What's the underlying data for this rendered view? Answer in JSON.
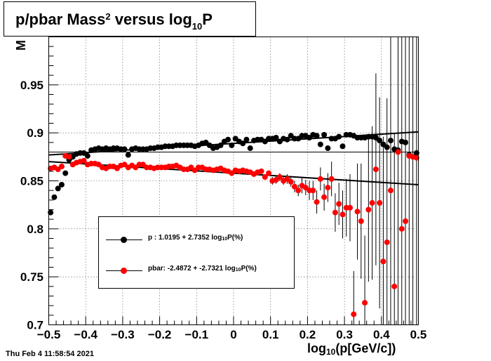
{
  "title": {
    "main": "p/pbar Mass",
    "sup": "2",
    "mid": " versus log",
    "sub": "10",
    "tail": "P"
  },
  "timestamp": "Thu Feb  4 11:58:54 2021",
  "xaxis_title": {
    "pre": "log",
    "sub": "10",
    "post": "(p[GeV/c])"
  },
  "legend": [
    {
      "name": "legend-entry-p",
      "pre": "p   : 1.0195 + 2.7352 log",
      "sub": "10",
      "post": "P(%)",
      "color": "#000000"
    },
    {
      "name": "legend-entry-pbar",
      "pre": "pbar: -2.4872 + -2.7321 log",
      "sub": "10",
      "post": "P(%)",
      "color": "#ff0000"
    }
  ],
  "colors": {
    "p": "#000000",
    "pbar": "#ff0000",
    "fit": "#000000"
  },
  "chart_data": {
    "type": "scatter",
    "title": "p/pbar Mass^2 versus log10P",
    "xlabel": "log10(p[GeV/c])",
    "ylabel": "M",
    "xlim": [
      -0.5,
      0.5
    ],
    "ylim": [
      0.7,
      1.0
    ],
    "xticks": [
      -0.5,
      -0.4,
      -0.3,
      -0.2,
      -0.1,
      0,
      0.1,
      0.2,
      0.3,
      0.4,
      0.5
    ],
    "xtick_labels": [
      "−0.5",
      "−0.4",
      "−0.3",
      "−0.2",
      "−0.1",
      "0",
      "0.1",
      "0.2",
      "0.3",
      "0.4",
      "0.5"
    ],
    "yticks": [
      0.7,
      0.75,
      0.8,
      0.85,
      0.9,
      0.95
    ],
    "ytick_labels": [
      "0.7",
      "0.75",
      "0.8",
      "0.85",
      "0.9",
      "0.95"
    ],
    "grid": true,
    "legend_position": "lower-left",
    "reference_line_y": 0.88,
    "series": [
      {
        "name": "p",
        "color": "#000000",
        "x": [
          -0.495,
          -0.485,
          -0.475,
          -0.465,
          -0.455,
          -0.445,
          -0.435,
          -0.425,
          -0.415,
          -0.405,
          -0.395,
          -0.385,
          -0.375,
          -0.365,
          -0.355,
          -0.345,
          -0.335,
          -0.325,
          -0.315,
          -0.305,
          -0.295,
          -0.285,
          -0.275,
          -0.265,
          -0.255,
          -0.245,
          -0.235,
          -0.225,
          -0.215,
          -0.205,
          -0.195,
          -0.185,
          -0.175,
          -0.165,
          -0.155,
          -0.145,
          -0.135,
          -0.125,
          -0.115,
          -0.105,
          -0.095,
          -0.085,
          -0.075,
          -0.065,
          -0.055,
          -0.045,
          -0.035,
          -0.025,
          -0.015,
          -0.005,
          0.005,
          0.015,
          0.025,
          0.035,
          0.045,
          0.055,
          0.065,
          0.075,
          0.085,
          0.095,
          0.105,
          0.115,
          0.125,
          0.135,
          0.145,
          0.155,
          0.165,
          0.175,
          0.185,
          0.195,
          0.205,
          0.215,
          0.225,
          0.235,
          0.245,
          0.255,
          0.265,
          0.275,
          0.285,
          0.295,
          0.305,
          0.315,
          0.325,
          0.335,
          0.345,
          0.355,
          0.365,
          0.375,
          0.385,
          0.395,
          0.405,
          0.415,
          0.425,
          0.435,
          0.445,
          0.455,
          0.465,
          0.475,
          0.485,
          0.495
        ],
        "y": [
          0.817,
          0.833,
          0.842,
          0.846,
          0.858,
          0.872,
          0.875,
          0.878,
          0.879,
          0.879,
          0.876,
          0.882,
          0.883,
          0.884,
          0.883,
          0.884,
          0.883,
          0.884,
          0.884,
          0.883,
          0.883,
          0.877,
          0.883,
          0.884,
          0.883,
          0.883,
          0.883,
          0.884,
          0.884,
          0.885,
          0.885,
          0.886,
          0.886,
          0.886,
          0.887,
          0.887,
          0.887,
          0.887,
          0.887,
          0.886,
          0.887,
          0.889,
          0.89,
          0.887,
          0.884,
          0.885,
          0.887,
          0.891,
          0.893,
          0.887,
          0.894,
          0.891,
          0.889,
          0.893,
          0.884,
          0.892,
          0.893,
          0.893,
          0.891,
          0.894,
          0.894,
          0.895,
          0.891,
          0.894,
          0.893,
          0.897,
          0.894,
          0.894,
          0.897,
          0.897,
          0.895,
          0.898,
          0.897,
          0.888,
          0.898,
          0.884,
          0.894,
          0.894,
          0.896,
          0.886,
          0.898,
          0.898,
          0.897,
          0.895,
          0.895,
          0.895,
          0.896,
          0.896,
          0.895,
          0.892,
          0.888,
          0.885,
          0.892,
          0.883,
          0.882,
          0.891,
          0.89,
          0.877,
          0.875,
          0.879
        ]
      },
      {
        "name": "pbar",
        "color": "#ff0000",
        "x": [
          -0.495,
          -0.485,
          -0.475,
          -0.465,
          -0.455,
          -0.445,
          -0.435,
          -0.425,
          -0.415,
          -0.405,
          -0.395,
          -0.385,
          -0.375,
          -0.365,
          -0.355,
          -0.345,
          -0.335,
          -0.325,
          -0.315,
          -0.305,
          -0.295,
          -0.285,
          -0.275,
          -0.265,
          -0.255,
          -0.245,
          -0.235,
          -0.225,
          -0.215,
          -0.205,
          -0.195,
          -0.185,
          -0.175,
          -0.165,
          -0.155,
          -0.145,
          -0.135,
          -0.125,
          -0.115,
          -0.105,
          -0.095,
          -0.085,
          -0.075,
          -0.065,
          -0.055,
          -0.045,
          -0.035,
          -0.025,
          -0.015,
          -0.005,
          0.005,
          0.015,
          0.025,
          0.035,
          0.045,
          0.055,
          0.065,
          0.075,
          0.085,
          0.095,
          0.105,
          0.115,
          0.125,
          0.135,
          0.145,
          0.155,
          0.165,
          0.175,
          0.185,
          0.195,
          0.205,
          0.215,
          0.225,
          0.235,
          0.245,
          0.255,
          0.265,
          0.275,
          0.285,
          0.295,
          0.305,
          0.315,
          0.325,
          0.335,
          0.345,
          0.355,
          0.365,
          0.375,
          0.385,
          0.395,
          0.405,
          0.415,
          0.425,
          0.435,
          0.445,
          0.455,
          0.465,
          0.475,
          0.485,
          0.495
        ],
        "y": [
          0.863,
          0.864,
          0.862,
          0.865,
          0.876,
          0.875,
          0.867,
          0.869,
          0.87,
          0.871,
          0.867,
          0.868,
          0.868,
          0.867,
          0.864,
          0.863,
          0.865,
          0.865,
          0.863,
          0.866,
          0.867,
          0.864,
          0.866,
          0.864,
          0.867,
          0.867,
          0.864,
          0.864,
          0.863,
          0.864,
          0.864,
          0.864,
          0.865,
          0.865,
          0.866,
          0.864,
          0.862,
          0.862,
          0.864,
          0.861,
          0.864,
          0.864,
          0.862,
          0.862,
          0.861,
          0.862,
          0.863,
          0.861,
          0.86,
          0.858,
          0.861,
          0.86,
          0.861,
          0.86,
          0.859,
          0.857,
          0.859,
          0.86,
          0.854,
          0.858,
          0.85,
          0.851,
          0.854,
          0.85,
          0.852,
          0.849,
          0.844,
          0.84,
          0.845,
          0.843,
          0.84,
          0.84,
          0.828,
          0.852,
          0.833,
          0.843,
          0.852,
          0.817,
          0.826,
          0.815,
          0.822,
          0.822,
          0.711,
          0.818,
          0.808,
          0.723,
          0.82,
          0.827,
          0.862,
          0.827,
          0.766,
          0.786,
          0.84,
          0.74,
          0.88,
          0.8,
          0.808,
          0.876,
          0.875,
          0.874
        ],
        "yerr": [
          0.002,
          0.002,
          0.002,
          0.002,
          0.002,
          0.002,
          0.002,
          0.002,
          0.002,
          0.002,
          0.002,
          0.002,
          0.002,
          0.002,
          0.002,
          0.002,
          0.002,
          0.002,
          0.002,
          0.002,
          0.002,
          0.002,
          0.002,
          0.002,
          0.002,
          0.002,
          0.002,
          0.002,
          0.002,
          0.002,
          0.002,
          0.002,
          0.002,
          0.002,
          0.002,
          0.002,
          0.002,
          0.002,
          0.002,
          0.002,
          0.002,
          0.002,
          0.002,
          0.002,
          0.002,
          0.002,
          0.002,
          0.002,
          0.002,
          0.002,
          0.002,
          0.002,
          0.002,
          0.002,
          0.002,
          0.002,
          0.002,
          0.002,
          0.002,
          0.002,
          0.004,
          0.004,
          0.004,
          0.004,
          0.005,
          0.005,
          0.006,
          0.006,
          0.008,
          0.008,
          0.01,
          0.01,
          0.012,
          0.012,
          0.014,
          0.015,
          0.018,
          0.02,
          0.022,
          0.025,
          0.03,
          0.035,
          0.045,
          0.05,
          0.06,
          0.07,
          0.075,
          0.08,
          0.1,
          0.11,
          0.13,
          0.15,
          0.16,
          0.16,
          0.18,
          0.2,
          0.2,
          0.2,
          0.2,
          0.2
        ]
      }
    ],
    "fits": [
      {
        "name": "p",
        "x": [
          -0.5,
          0.5
        ],
        "y": [
          0.877,
          0.901
        ]
      },
      {
        "name": "pbar",
        "x": [
          -0.5,
          0.5
        ],
        "y": [
          0.87,
          0.846
        ]
      }
    ]
  }
}
